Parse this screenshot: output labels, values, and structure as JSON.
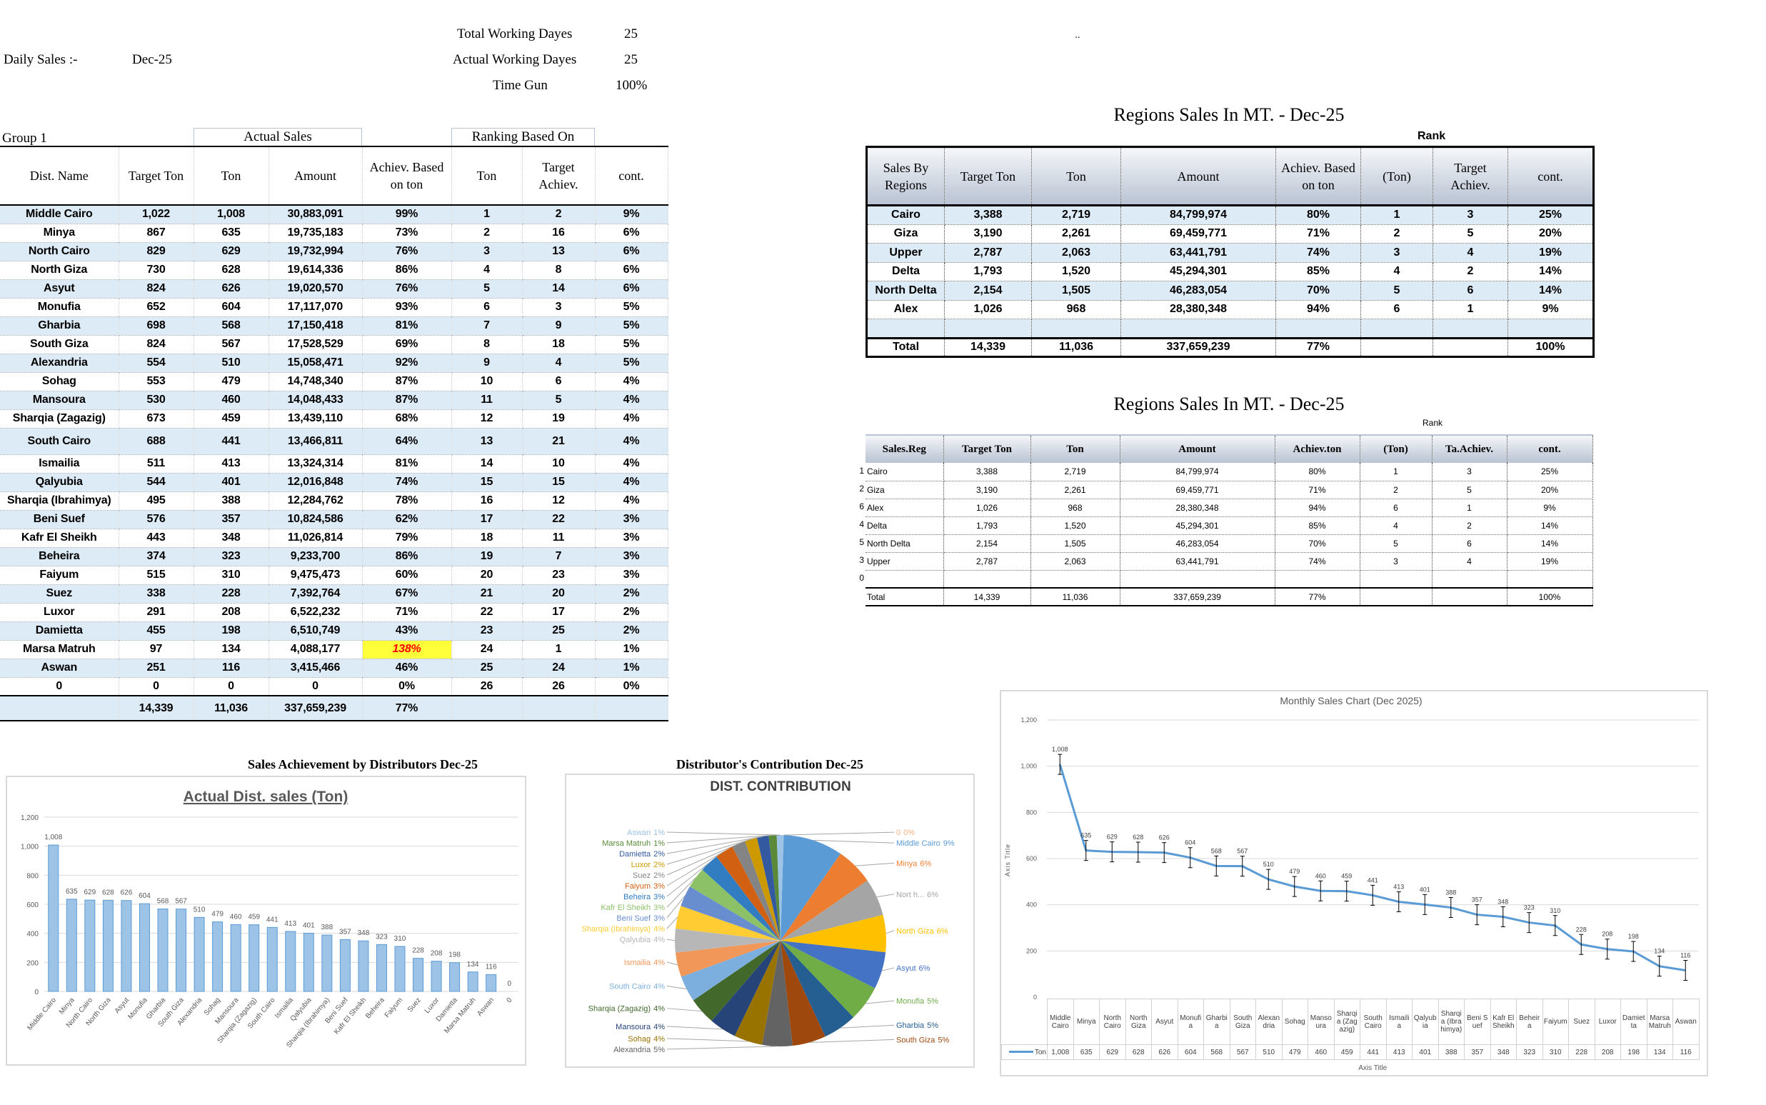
{
  "header": {
    "daily_sales_label": "Daily Sales :-",
    "month": "Dec-25",
    "total_working_days_label": "Total Working Dayes",
    "total_working_days": "25",
    "actual_working_days_label": "Actual Working Dayes",
    "actual_working_days": "25",
    "time_gone_label": "Time Gun",
    "time_gone": "100%",
    "corner_mark": ".."
  },
  "distributors_table": {
    "group_label": "Group 1",
    "actual_sales_label": "Actual Sales",
    "ranking_label": "Ranking Based On",
    "columns": [
      "Dist. Name",
      "Target Ton",
      "Ton",
      "Amount",
      "Achiev. Based on ton",
      "Ton",
      "Target Achiev.",
      "cont."
    ],
    "rows": [
      [
        "Middle Cairo",
        "1,022",
        "1,008",
        "30,883,091",
        "99%",
        "1",
        "2",
        "9%"
      ],
      [
        "Minya",
        "867",
        "635",
        "19,735,183",
        "73%",
        "2",
        "16",
        "6%"
      ],
      [
        "North Cairo",
        "829",
        "629",
        "19,732,994",
        "76%",
        "3",
        "13",
        "6%"
      ],
      [
        "North Giza",
        "730",
        "628",
        "19,614,336",
        "86%",
        "4",
        "8",
        "6%"
      ],
      [
        "Asyut",
        "824",
        "626",
        "19,020,570",
        "76%",
        "5",
        "14",
        "6%"
      ],
      [
        "Monufia",
        "652",
        "604",
        "17,117,070",
        "93%",
        "6",
        "3",
        "5%"
      ],
      [
        "Gharbia",
        "698",
        "568",
        "17,150,418",
        "81%",
        "7",
        "9",
        "5%"
      ],
      [
        "South Giza",
        "824",
        "567",
        "17,528,529",
        "69%",
        "8",
        "18",
        "5%"
      ],
      [
        "Alexandria",
        "554",
        "510",
        "15,058,471",
        "92%",
        "9",
        "4",
        "5%"
      ],
      [
        "Sohag",
        "553",
        "479",
        "14,748,340",
        "87%",
        "10",
        "6",
        "4%"
      ],
      [
        "Mansoura",
        "530",
        "460",
        "14,048,433",
        "87%",
        "11",
        "5",
        "4%"
      ],
      [
        "Sharqia (Zagazig)",
        "673",
        "459",
        "13,439,110",
        "68%",
        "12",
        "19",
        "4%"
      ],
      [
        "South Cairo",
        "688",
        "441",
        "13,466,811",
        "64%",
        "13",
        "21",
        "4%"
      ],
      [
        "Ismailia",
        "511",
        "413",
        "13,324,314",
        "81%",
        "14",
        "10",
        "4%"
      ],
      [
        "Qalyubia",
        "544",
        "401",
        "12,016,848",
        "74%",
        "15",
        "15",
        "4%"
      ],
      [
        "Sharqia (Ibrahimya)",
        "495",
        "388",
        "12,284,762",
        "78%",
        "16",
        "12",
        "4%"
      ],
      [
        "Beni Suef",
        "576",
        "357",
        "10,824,586",
        "62%",
        "17",
        "22",
        "3%"
      ],
      [
        "Kafr El Sheikh",
        "443",
        "348",
        "11,026,814",
        "79%",
        "18",
        "11",
        "3%"
      ],
      [
        "Beheira",
        "374",
        "323",
        "9,233,700",
        "86%",
        "19",
        "7",
        "3%"
      ],
      [
        "Faiyum",
        "515",
        "310",
        "9,475,473",
        "60%",
        "20",
        "23",
        "3%"
      ],
      [
        "Suez",
        "338",
        "228",
        "7,392,764",
        "67%",
        "21",
        "20",
        "2%"
      ],
      [
        "Luxor",
        "291",
        "208",
        "6,522,232",
        "71%",
        "22",
        "17",
        "2%"
      ],
      [
        "Damietta",
        "455",
        "198",
        "6,510,749",
        "43%",
        "23",
        "25",
        "2%"
      ],
      [
        "Marsa Matruh",
        "97",
        "134",
        "4,088,177",
        "138%",
        "24",
        "1",
        "1%"
      ],
      [
        "Aswan",
        "251",
        "116",
        "3,415,466",
        "46%",
        "25",
        "24",
        "1%"
      ],
      [
        "0",
        "0",
        "0",
        "0",
        "0%",
        "26",
        "26",
        "0%"
      ]
    ],
    "total": [
      "",
      "14,339",
      "11,036",
      "337,659,239",
      "77%",
      "",
      "",
      ""
    ],
    "highlight_color": "#ffff00"
  },
  "regions_table_1": {
    "title": "Regions Sales In MT. -  Dec-25",
    "rank_label": "Rank",
    "columns": [
      "Sales By Regions",
      "Target Ton",
      "Ton",
      "Amount",
      "Achiev. Based on ton",
      "(Ton)",
      "Target Achiev.",
      "cont."
    ],
    "rows": [
      [
        "Cairo",
        "3,388",
        "2,719",
        "84,799,974",
        "80%",
        "1",
        "3",
        "25%"
      ],
      [
        "Giza",
        "3,190",
        "2,261",
        "69,459,771",
        "71%",
        "2",
        "5",
        "20%"
      ],
      [
        "Upper",
        "2,787",
        "2,063",
        "63,441,791",
        "74%",
        "3",
        "4",
        "19%"
      ],
      [
        "Delta",
        "1,793",
        "1,520",
        "45,294,301",
        "85%",
        "4",
        "2",
        "14%"
      ],
      [
        "North Delta",
        "2,154",
        "1,505",
        "46,283,054",
        "70%",
        "5",
        "6",
        "14%"
      ],
      [
        "Alex",
        "1,026",
        "968",
        "28,380,348",
        "94%",
        "6",
        "1",
        "9%"
      ],
      [
        "",
        "",
        "",
        "",
        "",
        "",
        "",
        ""
      ]
    ],
    "total": [
      "Total",
      "14,339",
      "11,036",
      "337,659,239",
      "77%",
      "",
      "",
      "100%"
    ]
  },
  "regions_table_2": {
    "title": "Regions Sales In MT. -  Dec-25",
    "rank_label": "Rank",
    "columns": [
      "Sales.Reg",
      "Target Ton",
      "Ton",
      "Amount",
      "Achiev.ton",
      "(Ton)",
      "Ta.Achiev.",
      "cont."
    ],
    "row_numbers": [
      "1",
      "2",
      "6",
      "4",
      "5",
      "3",
      "0"
    ],
    "rows": [
      [
        "Cairo",
        "3,388",
        "2,719",
        "84,799,974",
        "80%",
        "1",
        "3",
        "25%"
      ],
      [
        "Giza",
        "3,190",
        "2,261",
        "69,459,771",
        "71%",
        "2",
        "5",
        "20%"
      ],
      [
        "Alex",
        "1,026",
        "968",
        "28,380,348",
        "94%",
        "6",
        "1",
        "9%"
      ],
      [
        "Delta",
        "1,793",
        "1,520",
        "45,294,301",
        "85%",
        "4",
        "2",
        "14%"
      ],
      [
        "North Delta",
        "2,154",
        "1,505",
        "46,283,054",
        "70%",
        "5",
        "6",
        "14%"
      ],
      [
        "Upper",
        "2,787",
        "2,063",
        "63,441,791",
        "74%",
        "3",
        "4",
        "19%"
      ],
      [
        "",
        "",
        "",
        "",
        "",
        "",
        "",
        ""
      ]
    ],
    "total": [
      "Total",
      "14,339",
      "11,036",
      "337,659,239",
      "77%",
      "",
      "",
      "100%"
    ]
  },
  "chart_data": [
    {
      "type": "bar",
      "title": "Sales Achievement by Distributors Dec-25",
      "subtitle": "Actual Dist. sales (Ton)",
      "categories": [
        "Middle Cairo",
        "Minya",
        "North Cairo",
        "North Giza",
        "Asyut",
        "Monufia",
        "Gharbia",
        "South Giza",
        "Alexandria",
        "Sohag",
        "Mansoura",
        "Sharqia (Zagazig)",
        "South Cairo",
        "Ismailia",
        "Qalyubia",
        "Sharqia (Ibrahimya)",
        "Beni Suef",
        "Kafr El Sheikh",
        "Beheira",
        "Faiyum",
        "Suez",
        "Luxor",
        "Damietta",
        "Marsa Matruh",
        "Aswan",
        "0"
      ],
      "values": [
        1008,
        635,
        629,
        628,
        626,
        604,
        568,
        567,
        510,
        479,
        460,
        459,
        441,
        413,
        401,
        388,
        357,
        348,
        323,
        310,
        228,
        208,
        198,
        134,
        116,
        0
      ],
      "value_labels": [
        "1,008",
        "635",
        "629",
        "628",
        "626",
        "604",
        "568",
        "567",
        "510",
        "479",
        "460",
        "459",
        "441",
        "413",
        "401",
        "388",
        "357",
        "348",
        "323",
        "310",
        "228",
        "208",
        "198",
        "134",
        "116",
        "0"
      ],
      "ylim": [
        0,
        1200
      ],
      "yticks": [
        "0",
        "200",
        "400",
        "600",
        "800",
        "1,000",
        "1,200"
      ],
      "grid": true,
      "color": "#9dc3e6"
    },
    {
      "type": "pie",
      "title": "Distributor's Contribution Dec-25",
      "subtitle": "DIST. CONTRIBUTION",
      "labels": [
        "Middle Cairo",
        "Minya",
        "Nort h...",
        "North Giza",
        "Asyut",
        "Monufia",
        "Gharbia",
        "South Giza",
        "Alexandria",
        "Sohag",
        "Mansoura",
        "Sharqia (Zagazig)",
        "South Cairo",
        "Ismailia",
        "Qalyubia",
        "Sharqia (Ibrahimya)",
        "Beni Suef",
        "Kafr El Sheikh",
        "Beheira",
        "Faiyum",
        "Suez",
        "Luxor",
        "Damietta",
        "Marsa Matruh",
        "Aswan",
        "0"
      ],
      "values": [
        1008,
        635,
        629,
        628,
        626,
        604,
        568,
        567,
        510,
        479,
        460,
        459,
        441,
        413,
        401,
        388,
        357,
        348,
        323,
        310,
        228,
        208,
        198,
        134,
        116,
        0
      ],
      "percent_labels": [
        "9%",
        "6%",
        "6%",
        "6%",
        "6%",
        "5%",
        "5%",
        "5%",
        "5%",
        "4%",
        "4%",
        "4%",
        "4%",
        "4%",
        "4%",
        "4%",
        "3%",
        "3%",
        "3%",
        "3%",
        "2%",
        "2%",
        "2%",
        "1%",
        "1%",
        "0%"
      ],
      "colors": [
        "#5b9bd5",
        "#ed7d31",
        "#a5a5a5",
        "#ffc000",
        "#4472c4",
        "#70ad47",
        "#255e91",
        "#9e480e",
        "#636363",
        "#997300",
        "#264478",
        "#43682b",
        "#7cafdd",
        "#f1975a",
        "#b7b7b7",
        "#ffcd33",
        "#698ed0",
        "#8cc168",
        "#327dc2",
        "#d26012",
        "#848484",
        "#cc9a00",
        "#335aa1",
        "#5a8a39",
        "#9dc3e6",
        "#f4b183"
      ]
    },
    {
      "type": "line",
      "title": "Monthly Sales Chart (Dec 2025)",
      "xlabel": "Axis Title",
      "ylabel": "Axis Title",
      "categories": [
        "Middle Cairo",
        "Minya",
        "North Cairo",
        "North Giza",
        "Asyut",
        "Monufia",
        "Gharbia",
        "South Giza",
        "Alexandria",
        "Sohag",
        "Mansoura",
        "Sharqia (Zagazig)",
        "South Cairo",
        "Ismailia",
        "Qalyubia",
        "Sharqia (Ibrahimya)",
        "Beni Suef",
        "Kafr El Sheikh",
        "Beheira",
        "Faiyum",
        "Suez",
        "Luxor",
        "Damietta",
        "Marsa Matruh",
        "Aswan"
      ],
      "series": [
        {
          "name": "Ton",
          "values": [
            1008,
            635,
            629,
            628,
            626,
            604,
            568,
            567,
            510,
            479,
            460,
            459,
            441,
            413,
            401,
            388,
            357,
            348,
            323,
            310,
            228,
            208,
            198,
            134,
            116
          ],
          "value_labels": [
            "1,008",
            "635",
            "629",
            "628",
            "626",
            "604",
            "568",
            "567",
            "510",
            "479",
            "460",
            "459",
            "441",
            "413",
            "401",
            "388",
            "357",
            "348",
            "323",
            "310",
            "228",
            "208",
            "198",
            "134",
            "116"
          ]
        }
      ],
      "ylim": [
        0,
        1200
      ],
      "yticks": [
        "0",
        "200",
        "400",
        "600",
        "800",
        "1,000",
        "1,200"
      ],
      "error_bars": true,
      "grid": true,
      "color": "#5b9bd5",
      "data_table": true
    }
  ]
}
